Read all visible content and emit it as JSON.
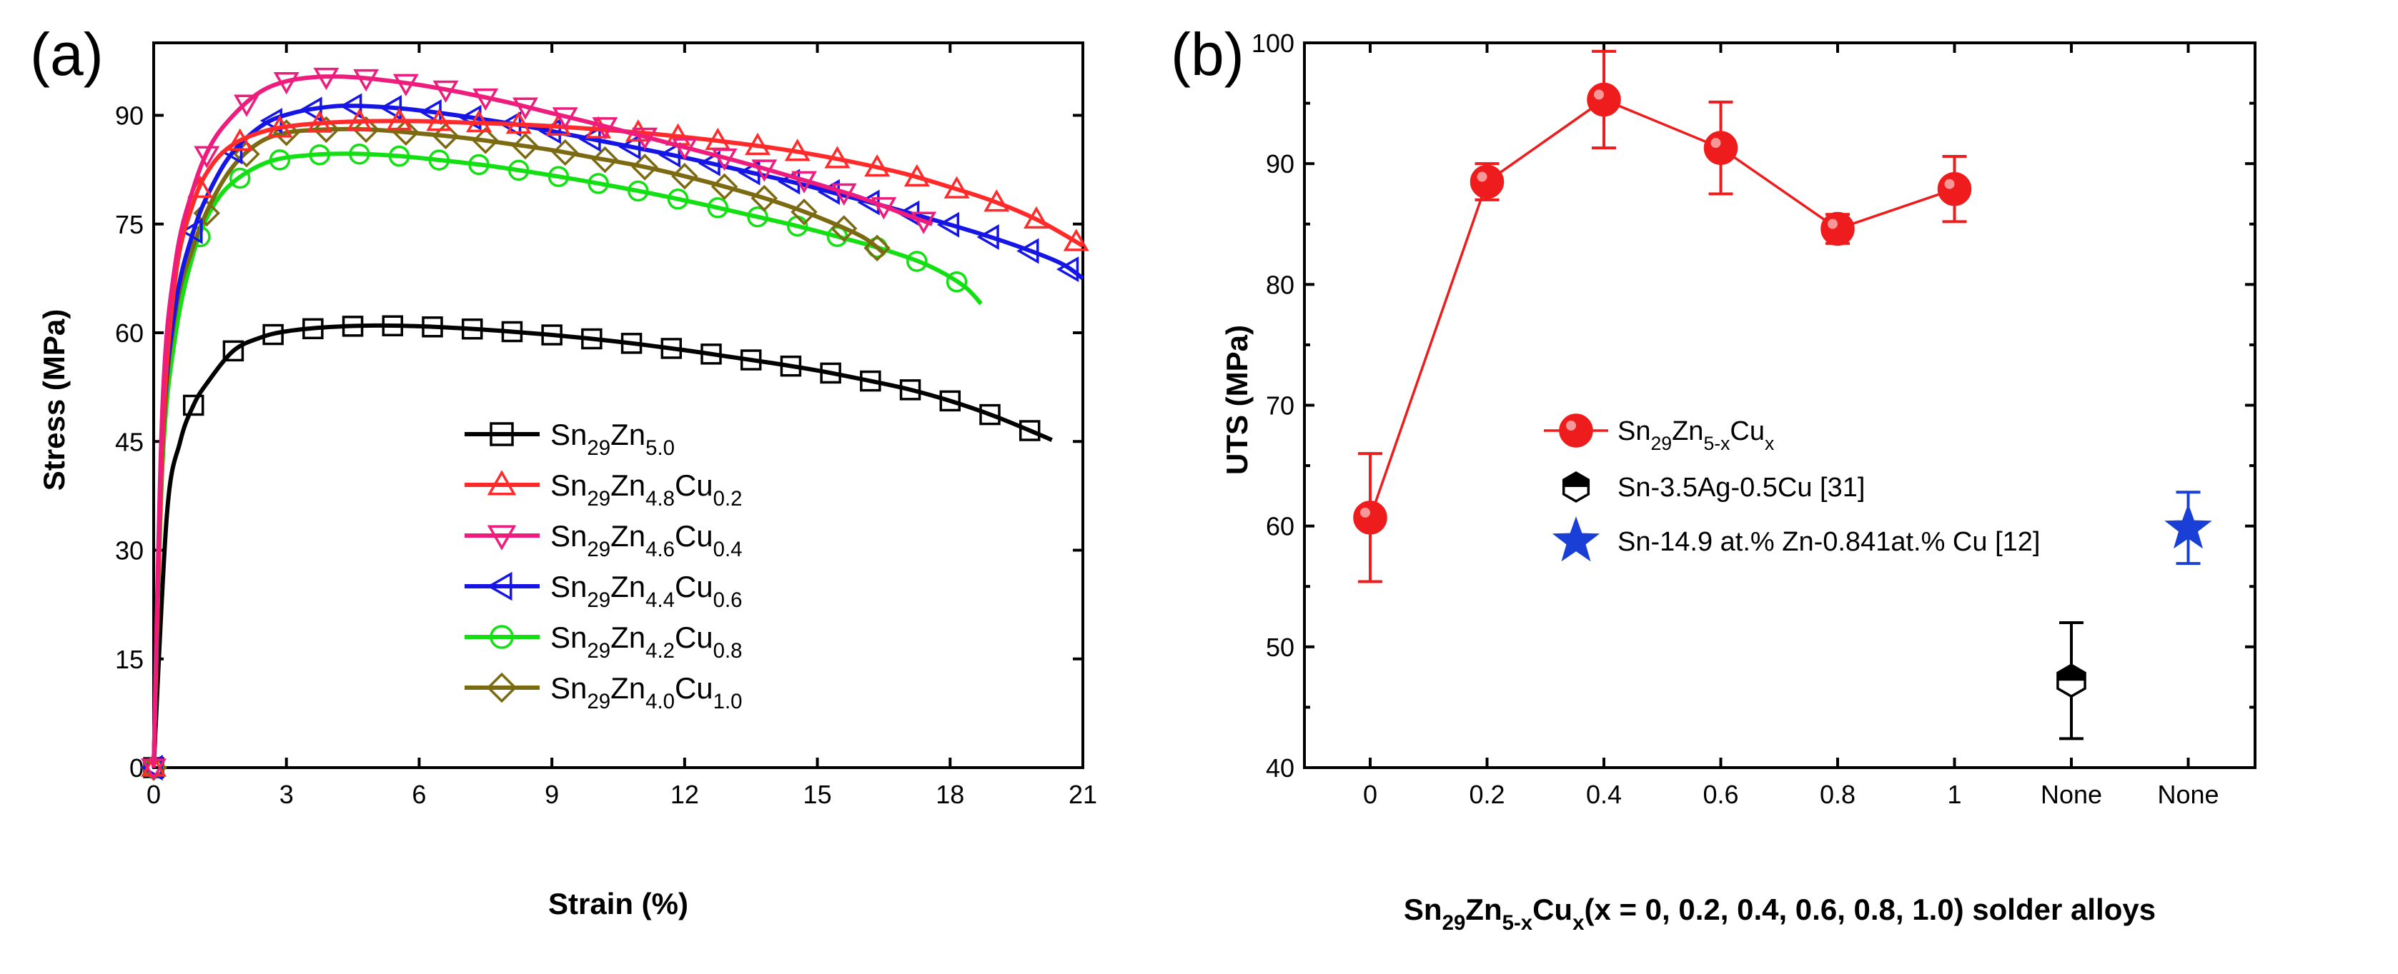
{
  "chart_data": [
    {
      "panel_label": "(a)",
      "type": "line",
      "xlabel": "Strain (%)",
      "ylabel": "Stress (MPa)",
      "xlim": [
        0,
        21
      ],
      "ylim": [
        0,
        100
      ],
      "xticks": [
        0,
        3,
        6,
        9,
        12,
        15,
        18,
        21
      ],
      "yticks": [
        0,
        15,
        30,
        45,
        60,
        75,
        90
      ],
      "grid": false,
      "legend_position": "bottom-center",
      "series": [
        {
          "name": "Sn29Zn5.0",
          "label_parts": [
            [
              "Sn",
              ""
            ],
            [
              "29",
              "sub"
            ],
            [
              "Zn",
              ""
            ],
            [
              "5.0",
              "sub"
            ]
          ],
          "color": "#000000",
          "marker": "square",
          "x": [
            0,
            0.3,
            0.6,
            0.9,
            1.2,
            1.8,
            2.4,
            3,
            4,
            5,
            6,
            7,
            8,
            9,
            10,
            11,
            12,
            13,
            14,
            15,
            16,
            17,
            18,
            19,
            20,
            20.3
          ],
          "y": [
            0,
            35,
            45,
            50,
            53,
            57.5,
            59.3,
            60.2,
            60.8,
            61,
            60.9,
            60.6,
            60.2,
            59.7,
            59.1,
            58.4,
            57.6,
            56.7,
            55.8,
            54.8,
            53.6,
            52.3,
            50.6,
            48.5,
            46,
            45.2
          ]
        },
        {
          "name": "Sn29Zn4.8Cu0.2",
          "label_parts": [
            [
              "Sn",
              ""
            ],
            [
              "29",
              "sub"
            ],
            [
              "Zn",
              ""
            ],
            [
              "4.8",
              "sub"
            ],
            [
              "Cu",
              ""
            ],
            [
              "0.2",
              "sub"
            ]
          ],
          "color": "#ff2a2a",
          "marker": "triangle-up",
          "x": [
            0,
            0.2,
            0.5,
            0.9,
            1.3,
            1.8,
            2.5,
            3.2,
            4,
            5,
            6,
            7,
            8,
            9,
            10,
            11,
            12,
            13,
            14,
            15,
            16,
            17,
            18,
            19,
            20,
            21
          ],
          "y": [
            0,
            45,
            68,
            78,
            83,
            86,
            87.8,
            88.6,
            89,
            89.2,
            89.2,
            89,
            88.8,
            88.5,
            88.1,
            87.6,
            87,
            86.3,
            85.5,
            84.5,
            83.3,
            81.9,
            80.1,
            78.1,
            75.5,
            72
          ]
        },
        {
          "name": "Sn29Zn4.6Cu0.4",
          "label_parts": [
            [
              "Sn",
              ""
            ],
            [
              "29",
              "sub"
            ],
            [
              "Zn",
              ""
            ],
            [
              "4.6",
              "sub"
            ],
            [
              "Cu",
              ""
            ],
            [
              "0.4",
              "sub"
            ]
          ],
          "color": "#ee1c7c",
          "marker": "triangle-down",
          "x": [
            0,
            0.2,
            0.5,
            0.9,
            1.3,
            1.8,
            2.4,
            3,
            3.7,
            4.4,
            5,
            6,
            7,
            8,
            9,
            10,
            11,
            12,
            13,
            14,
            15,
            16,
            17,
            17.6
          ],
          "y": [
            0,
            50,
            70,
            80,
            86,
            90,
            93.2,
            94.7,
            95.3,
            95.3,
            95,
            94.2,
            93.1,
            91.8,
            90.3,
            88.8,
            87.2,
            85.6,
            84,
            82.3,
            80.5,
            78.6,
            76.3,
            75
          ]
        },
        {
          "name": "Sn29Zn4.4Cu0.6",
          "label_parts": [
            [
              "Sn",
              ""
            ],
            [
              "29",
              "sub"
            ],
            [
              "Zn",
              ""
            ],
            [
              "4.4",
              "sub"
            ],
            [
              "Cu",
              ""
            ],
            [
              "0.6",
              "sub"
            ]
          ],
          "color": "#1515e6",
          "marker": "triangle-left",
          "x": [
            0,
            0.2,
            0.5,
            0.9,
            1.3,
            1.8,
            2.5,
            3.2,
            4,
            4.6,
            5.5,
            6.5,
            7.5,
            8.5,
            9.5,
            10.5,
            11.5,
            12.5,
            13.5,
            14.5,
            15.5,
            16.5,
            17.5,
            18.5,
            19.5,
            20.5,
            21
          ],
          "y": [
            0,
            45,
            64,
            74,
            80,
            85,
            88.8,
            90.4,
            91.2,
            91.3,
            91,
            90.3,
            89.4,
            88.4,
            87.2,
            86,
            84.8,
            83.5,
            82.1,
            80.7,
            79.1,
            77.5,
            75.8,
            74,
            72,
            69.6,
            67.5
          ]
        },
        {
          "name": "Sn29Zn4.2Cu0.8",
          "label_parts": [
            [
              "Sn",
              ""
            ],
            [
              "29",
              "sub"
            ],
            [
              "Zn",
              ""
            ],
            [
              "4.2",
              "sub"
            ],
            [
              "Cu",
              ""
            ],
            [
              "0.8",
              "sub"
            ]
          ],
          "color": "#12e012",
          "marker": "circle",
          "x": [
            0,
            0.2,
            0.5,
            0.9,
            1.3,
            1.8,
            2.6,
            3.5,
            4.5,
            5.5,
            6.5,
            7.5,
            8.5,
            9.5,
            10.5,
            11.5,
            12.5,
            13.5,
            14.5,
            15.5,
            16.5,
            17.5,
            18.3,
            18.7
          ],
          "y": [
            0,
            42,
            60,
            71,
            77,
            80.8,
            83.6,
            84.5,
            84.7,
            84.4,
            83.8,
            83.1,
            82.2,
            81.2,
            80.1,
            78.9,
            77.6,
            76.2,
            74.8,
            73.2,
            71.5,
            69.3,
            66.5,
            64
          ]
        },
        {
          "name": "Sn29Zn4.0Cu1.0",
          "label_parts": [
            [
              "Sn",
              ""
            ],
            [
              "29",
              "sub"
            ],
            [
              "Zn",
              ""
            ],
            [
              "4.0",
              "sub"
            ],
            [
              "Cu",
              ""
            ],
            [
              "1.0",
              "sub"
            ]
          ],
          "color": "#7b6a12",
          "marker": "diamond",
          "x": [
            0,
            0.2,
            0.5,
            0.9,
            1.3,
            1.8,
            2.4,
            3,
            3.7,
            4.4,
            5,
            6,
            7,
            8,
            9,
            10,
            11,
            12,
            13,
            14,
            15,
            16,
            16.5
          ],
          "y": [
            0,
            44,
            63,
            72,
            78,
            83,
            86.3,
            87.6,
            88,
            88.1,
            88,
            87.5,
            86.9,
            86.1,
            85.2,
            84.1,
            83,
            81.6,
            80,
            78.2,
            76,
            73.3,
            71
          ]
        }
      ]
    },
    {
      "panel_label": "(b)",
      "type": "scatter",
      "ylabel": "UTS (MPa)",
      "xlabel_parts": [
        [
          "Sn",
          ""
        ],
        [
          "29",
          "sub"
        ],
        [
          "Zn",
          ""
        ],
        [
          "5-x",
          "sub"
        ],
        [
          "Cu",
          ""
        ],
        [
          "x",
          "sub"
        ],
        [
          "(x = 0, 0.2, 0.4, 0.6, 0.8, 1.0) solder alloys",
          ""
        ]
      ],
      "categories": [
        "0",
        "0.2",
        "0.4",
        "0.6",
        "0.8",
        "1",
        "None",
        "None"
      ],
      "ylim": [
        40,
        100
      ],
      "yticks": [
        40,
        50,
        60,
        70,
        80,
        90,
        100
      ],
      "grid": false,
      "legend_position": "center",
      "series": [
        {
          "name": "Sn29Zn5-xCux",
          "label_parts": [
            [
              "Sn",
              ""
            ],
            [
              "29",
              "sub"
            ],
            [
              "Zn",
              ""
            ],
            [
              "5-x",
              "sub"
            ],
            [
              "Cu",
              ""
            ],
            [
              "x",
              "sub"
            ]
          ],
          "color": "#ee1c1c",
          "marker": "circle",
          "connected": true,
          "category_index": [
            0,
            1,
            2,
            3,
            4,
            5
          ],
          "values": [
            60.7,
            88.5,
            95.3,
            91.3,
            84.6,
            87.9
          ],
          "err_low": [
            5.3,
            1.5,
            4.0,
            3.8,
            1.2,
            2.7
          ],
          "err_high": [
            5.3,
            1.5,
            4.0,
            3.8,
            1.2,
            2.7
          ]
        },
        {
          "name": "Sn-3.5Ag-0.5Cu [31]",
          "label_parts": [
            [
              "Sn-3.5Ag-0.5Cu [31]",
              ""
            ]
          ],
          "color": "#000000",
          "marker": "hexagon",
          "connected": false,
          "category_index": [
            6
          ],
          "values": [
            47.2
          ],
          "err_low": [
            4.8
          ],
          "err_high": [
            4.8
          ]
        },
        {
          "name": "Sn-14.9 at.% Zn-0.841at.% Cu [12]",
          "label_parts": [
            [
              "Sn-14.9 at.% Zn-0.841at.% Cu [12]",
              ""
            ]
          ],
          "color": "#1a3fd6",
          "marker": "star",
          "connected": false,
          "category_index": [
            7
          ],
          "values": [
            59.8
          ],
          "err_low": [
            2.9
          ],
          "err_high": [
            3.0
          ]
        }
      ]
    }
  ]
}
